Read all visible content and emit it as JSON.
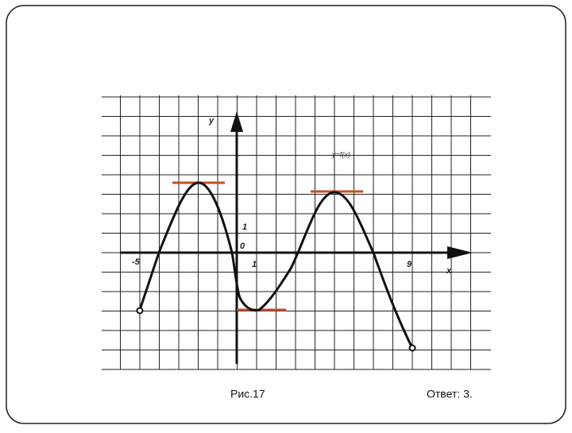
{
  "figure": {
    "axis_y_label": "y",
    "function_label": "y=f(x)",
    "y_unit_label": "1",
    "origin_label": "0",
    "x_start_label": "-5",
    "x_unit_label": "1",
    "x_end_label": "9",
    "axis_x_label": "x"
  },
  "caption": "Рис.17",
  "answer": "Ответ: 3."
}
